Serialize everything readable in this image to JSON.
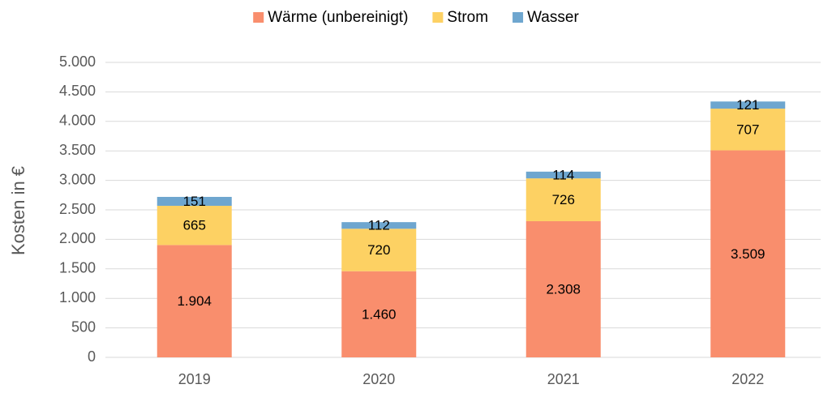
{
  "chart_data": {
    "type": "stacked_bar",
    "y_label": "Kosten in €",
    "categories": [
      "2019",
      "2020",
      "2021",
      "2022"
    ],
    "series": [
      {
        "name": "Wärme (unbereinigt)",
        "color": "#f98e6d",
        "values": [
          1904,
          1460,
          2308,
          3509
        ],
        "value_labels": [
          "1.904",
          "1.460",
          "2.308",
          "3.509"
        ]
      },
      {
        "name": "Strom",
        "color": "#fdd163",
        "values": [
          665,
          720,
          726,
          707
        ]
      },
      {
        "name": "Wasser",
        "color": "#6ea6cf",
        "values": [
          151,
          112,
          114,
          121
        ]
      }
    ],
    "ylim": [
      0,
      5000
    ],
    "yticks": [
      0,
      500,
      {
        "value": 1000,
        "label": "1.000"
      },
      {
        "value": 1500,
        "label": "1.500"
      },
      {
        "value": 2000,
        "label": "2.000"
      },
      {
        "value": 2500,
        "label": "2.500"
      },
      {
        "value": 3000,
        "label": "3.000"
      },
      {
        "value": 3500,
        "label": "3.500"
      },
      {
        "value": 4000,
        "label": "4.000"
      },
      {
        "value": 4500,
        "label": "4.500"
      },
      {
        "value": 5000,
        "label": "5.000"
      }
    ],
    "grid": true,
    "legend": "top"
  }
}
